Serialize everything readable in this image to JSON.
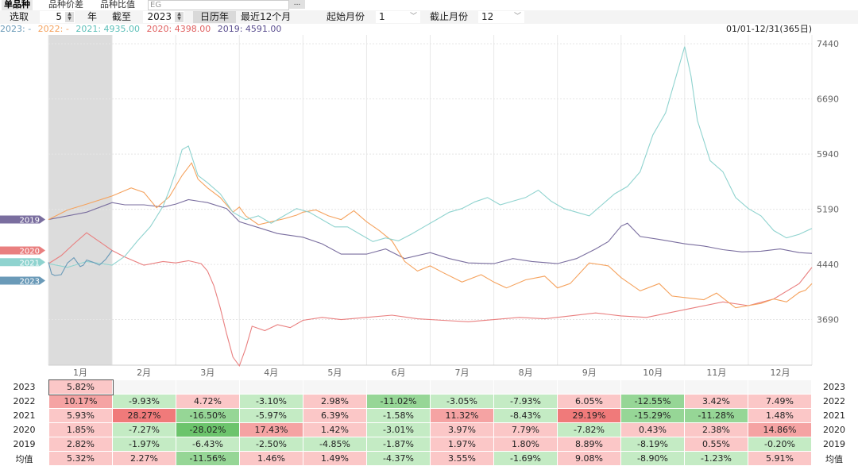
{
  "tabs": [
    "单品种",
    "品种价差",
    "品种比值"
  ],
  "field_value": "EG",
  "more_label": "...",
  "toolbar": {
    "select_label": "选取",
    "years_value": "5",
    "year_unit": "年",
    "until_label": "截至",
    "until_year": "2023",
    "calendar_btn": "日历年",
    "recent_btn": "最近12个月",
    "start_label": "起始月份",
    "start_value": "1",
    "end_label": "截止月份",
    "end_value": "12"
  },
  "legend": [
    "2023: -",
    "2022: -",
    "2021: 4935.00",
    "2020: 4398.00",
    "2019: 4591.00"
  ],
  "date_range": "01/01-12/31(365日)",
  "colors": {
    "2023": "#6a9ab8",
    "2022": "#f5a25d",
    "2021": "#8fd3cf",
    "2020": "#e97f7f",
    "2019": "#7a6e9f"
  },
  "chart_data": {
    "type": "line",
    "title": "",
    "x_tick_labels": [
      "1月",
      "2月",
      "3月",
      "4月",
      "5月",
      "6月",
      "7月",
      "8月",
      "9月",
      "10月",
      "11月",
      "12月"
    ],
    "ylim": [
      3070,
      7560
    ],
    "y_ticks": [
      3690,
      4440,
      5190,
      5940,
      6690,
      7440
    ],
    "y_tick_labels": [
      "3690",
      "4440",
      "5190",
      "5940",
      "6690",
      "7440"
    ],
    "x_unit": "month index (0 = Jan 1, 12 = Dec 31)",
    "series": [
      {
        "name": "2023",
        "x": [
          0,
          0.05,
          0.1,
          0.2,
          0.3,
          0.4,
          0.5,
          0.55,
          0.6,
          0.7,
          0.8,
          0.9,
          1.0
        ],
        "y": [
          4470,
          4310,
          4290,
          4300,
          4460,
          4530,
          4410,
          4430,
          4500,
          4470,
          4430,
          4510,
          4630
        ]
      },
      {
        "name": "2022",
        "x": [
          0,
          0.3,
          0.6,
          1.0,
          1.3,
          1.5,
          1.7,
          1.9,
          2.1,
          2.25,
          2.35,
          2.5,
          2.7,
          2.9,
          3.0,
          3.1,
          3.3,
          3.5,
          3.7,
          3.9,
          4.0,
          4.2,
          4.4,
          4.6,
          4.8,
          5.0,
          5.2,
          5.4,
          5.6,
          5.8,
          6.0,
          6.2,
          6.5,
          6.8,
          7.0,
          7.2,
          7.5,
          7.8,
          8.0,
          8.2,
          8.5,
          8.8,
          9.0,
          9.3,
          9.6,
          9.8,
          10.0,
          10.3,
          10.5,
          10.8,
          11.0,
          11.2,
          11.4,
          11.6,
          11.8,
          11.9,
          12.0
        ],
        "y": [
          5050,
          5180,
          5260,
          5370,
          5480,
          5420,
          5210,
          5360,
          5650,
          5820,
          5600,
          5480,
          5350,
          5150,
          5220,
          5100,
          4980,
          5020,
          5060,
          5110,
          5150,
          5180,
          5100,
          5050,
          5170,
          5020,
          4900,
          4760,
          4480,
          4350,
          4420,
          4330,
          4200,
          4300,
          4200,
          4120,
          4230,
          4280,
          4120,
          4180,
          4460,
          4420,
          4260,
          4080,
          4180,
          4010,
          3990,
          3960,
          4050,
          3850,
          3880,
          3910,
          3970,
          3930,
          4060,
          4090,
          4180
        ]
      },
      {
        "name": "2021",
        "x": [
          0,
          0.3,
          0.6,
          1.0,
          1.2,
          1.4,
          1.6,
          1.8,
          1.9,
          2.0,
          2.1,
          2.2,
          2.35,
          2.5,
          2.7,
          2.9,
          3.1,
          3.3,
          3.5,
          3.7,
          3.9,
          4.1,
          4.3,
          4.5,
          4.7,
          4.9,
          5.1,
          5.3,
          5.5,
          5.7,
          5.9,
          6.1,
          6.3,
          6.5,
          6.7,
          6.9,
          7.1,
          7.3,
          7.5,
          7.7,
          7.9,
          8.1,
          8.3,
          8.5,
          8.7,
          8.9,
          9.1,
          9.3,
          9.5,
          9.7,
          9.8,
          9.9,
          10.0,
          10.1,
          10.2,
          10.4,
          10.6,
          10.8,
          11.0,
          11.2,
          11.4,
          11.6,
          11.8,
          12.0
        ],
        "y": [
          4450,
          4400,
          4480,
          4430,
          4550,
          4760,
          4950,
          5230,
          5450,
          5700,
          6000,
          6050,
          5650,
          5550,
          5400,
          5150,
          5050,
          5100,
          5000,
          5100,
          5200,
          5150,
          5050,
          4950,
          4950,
          4850,
          4750,
          4800,
          4760,
          4850,
          4950,
          5050,
          5150,
          5200,
          5290,
          5350,
          5250,
          5300,
          5350,
          5450,
          5300,
          5200,
          5150,
          5100,
          5250,
          5400,
          5500,
          5700,
          6200,
          6500,
          6800,
          7100,
          7400,
          7000,
          6400,
          5850,
          5700,
          5350,
          5200,
          5100,
          4900,
          4800,
          4850,
          4930
        ]
      },
      {
        "name": "2020",
        "x": [
          0,
          0.2,
          0.4,
          0.6,
          0.8,
          1.0,
          1.2,
          1.5,
          1.8,
          2.0,
          2.2,
          2.4,
          2.5,
          2.6,
          2.7,
          2.8,
          2.9,
          3.0,
          3.1,
          3.2,
          3.4,
          3.6,
          3.8,
          4.0,
          4.3,
          4.6,
          5.0,
          5.4,
          5.8,
          6.2,
          6.6,
          7.0,
          7.4,
          7.8,
          8.2,
          8.6,
          9.0,
          9.4,
          9.8,
          10.2,
          10.6,
          11.0,
          11.4,
          11.8,
          12.0
        ],
        "y": [
          4450,
          4560,
          4720,
          4870,
          4750,
          4630,
          4540,
          4430,
          4480,
          4460,
          4490,
          4450,
          4350,
          4150,
          3850,
          3500,
          3180,
          3060,
          3300,
          3600,
          3540,
          3620,
          3580,
          3680,
          3720,
          3690,
          3720,
          3750,
          3700,
          3680,
          3660,
          3690,
          3720,
          3700,
          3740,
          3780,
          3740,
          3720,
          3790,
          3860,
          3930,
          3880,
          3970,
          4180,
          4400
        ]
      },
      {
        "name": "2019",
        "x": [
          0,
          0.3,
          0.6,
          1.0,
          1.2,
          1.5,
          1.8,
          2.0,
          2.2,
          2.5,
          2.8,
          3.0,
          3.3,
          3.6,
          4.0,
          4.3,
          4.6,
          5.0,
          5.3,
          5.6,
          6.0,
          6.3,
          6.6,
          7.0,
          7.3,
          7.6,
          8.0,
          8.3,
          8.6,
          8.8,
          9.0,
          9.1,
          9.3,
          9.6,
          10.0,
          10.3,
          10.6,
          10.9,
          11.2,
          11.5,
          11.8,
          12.0
        ],
        "y": [
          5050,
          5100,
          5150,
          5280,
          5250,
          5250,
          5220,
          5260,
          5320,
          5280,
          5200,
          5020,
          4940,
          4860,
          4810,
          4720,
          4580,
          4580,
          4650,
          4520,
          4600,
          4520,
          4460,
          4450,
          4520,
          4480,
          4450,
          4520,
          4650,
          4750,
          4960,
          5000,
          4820,
          4780,
          4720,
          4690,
          4640,
          4610,
          4620,
          4650,
          4600,
          4590
        ]
      }
    ],
    "left_markers": [
      {
        "label": "2019",
        "value": 5050,
        "color": "#7a6e9f"
      },
      {
        "label": "2020",
        "value": 4630,
        "color": "#e97f7f"
      },
      {
        "label": "2021",
        "value": 4470,
        "color": "#8fd3cf"
      },
      {
        "label": "2023",
        "value": 4220,
        "color": "#6a9ab8"
      }
    ],
    "table": {
      "rows": [
        {
          "year": "2023",
          "values": [
            "5.82%",
            "",
            "",
            "",
            "",
            "",
            "",
            "",
            "",
            "",
            "",
            ""
          ]
        },
        {
          "year": "2022",
          "values": [
            "10.17%",
            "-9.93%",
            "4.72%",
            "-3.10%",
            "2.98%",
            "-11.02%",
            "-3.05%",
            "-7.93%",
            "6.05%",
            "-12.55%",
            "3.42%",
            "7.49%"
          ]
        },
        {
          "year": "2021",
          "values": [
            "5.93%",
            "28.27%",
            "-16.50%",
            "-5.97%",
            "6.39%",
            "-1.58%",
            "11.32%",
            "-8.43%",
            "29.19%",
            "-15.29%",
            "-11.28%",
            "1.48%"
          ]
        },
        {
          "year": "2020",
          "values": [
            "1.85%",
            "-7.27%",
            "-28.02%",
            "17.43%",
            "1.42%",
            "-3.01%",
            "3.97%",
            "7.79%",
            "-7.82%",
            "0.43%",
            "2.38%",
            "14.86%"
          ]
        },
        {
          "year": "2019",
          "values": [
            "2.82%",
            "-1.97%",
            "-6.43%",
            "-2.50%",
            "-4.85%",
            "-1.87%",
            "1.97%",
            "1.80%",
            "8.89%",
            "-8.19%",
            "0.55%",
            "-0.20%"
          ]
        },
        {
          "year": "均值",
          "values": [
            "5.32%",
            "2.27%",
            "-11.56%",
            "1.46%",
            "1.49%",
            "-4.37%",
            "3.55%",
            "-1.69%",
            "9.08%",
            "-8.90%",
            "-1.23%",
            "5.91%"
          ]
        }
      ]
    }
  }
}
